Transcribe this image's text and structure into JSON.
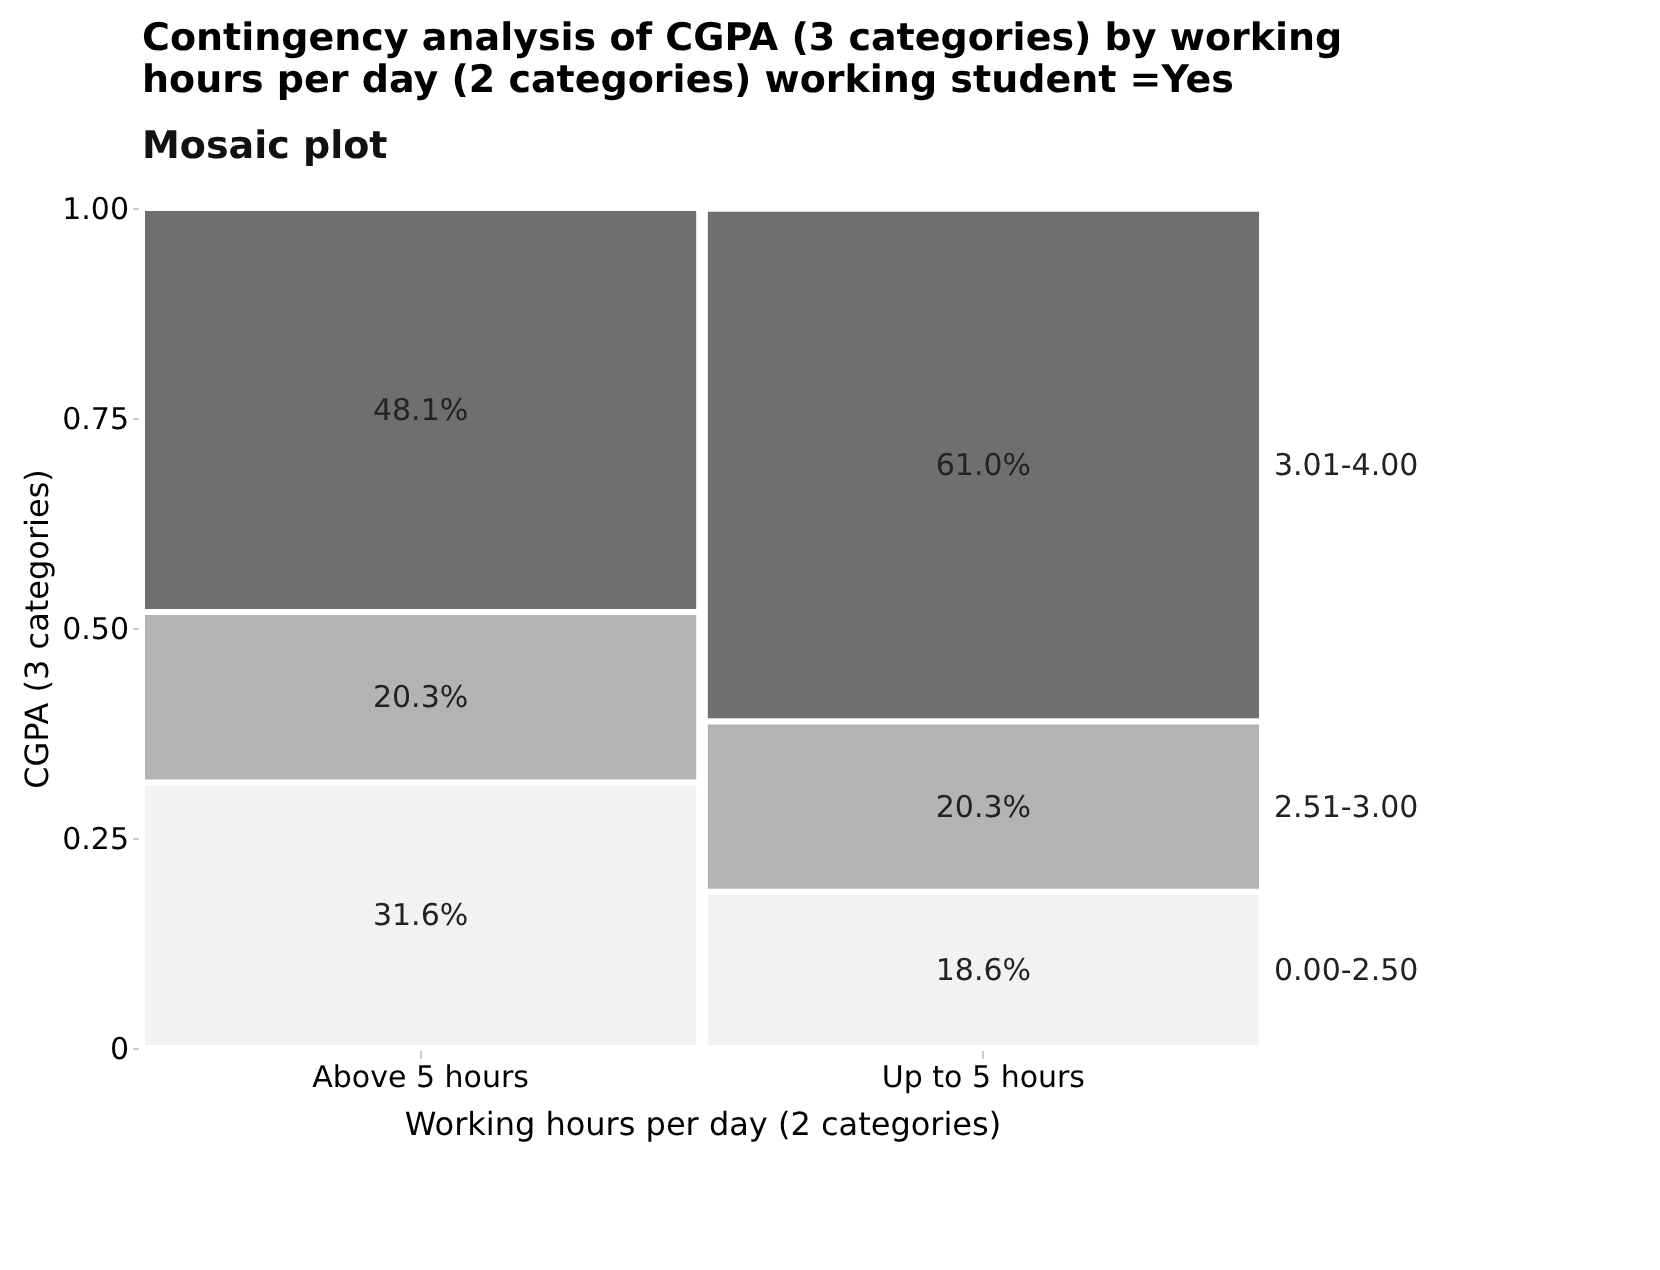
{
  "chart_data": {
    "type": "bar",
    "stacked": true,
    "title": [
      "Contingency analysis of CGPA (3 categories) by working",
      "hours per day (2 categories) working student =Yes"
    ],
    "subtitle": "Mosaic plot",
    "xlabel": "Working hours per day (2 categories)",
    "ylabel": "CGPA (3 categories)",
    "categories": [
      "Above 5 hours",
      "Up to 5 hours"
    ],
    "series": [
      {
        "name": "0.00-2.50",
        "color": "#f2f2f2",
        "values": [
          0.316,
          0.186
        ],
        "value_labels": [
          "31.6%",
          "18.6%"
        ]
      },
      {
        "name": "2.51-3.00",
        "color": "#b3b3b3",
        "values": [
          0.203,
          0.203
        ],
        "value_labels": [
          "20.3%",
          "20.3%"
        ]
      },
      {
        "name": "3.01-4.00",
        "color": "#6f6f6f",
        "values": [
          0.481,
          0.61
        ],
        "value_labels": [
          "48.1%",
          "61.0%"
        ]
      }
    ],
    "ylim": [
      0,
      1
    ],
    "yticks": [
      {
        "value": 0,
        "label": "0"
      },
      {
        "value": 0.25,
        "label": "0.25"
      },
      {
        "value": 0.5,
        "label": "0.50"
      },
      {
        "value": 0.75,
        "label": "0.75"
      },
      {
        "value": 1,
        "label": "1.00"
      }
    ],
    "legend": false
  }
}
